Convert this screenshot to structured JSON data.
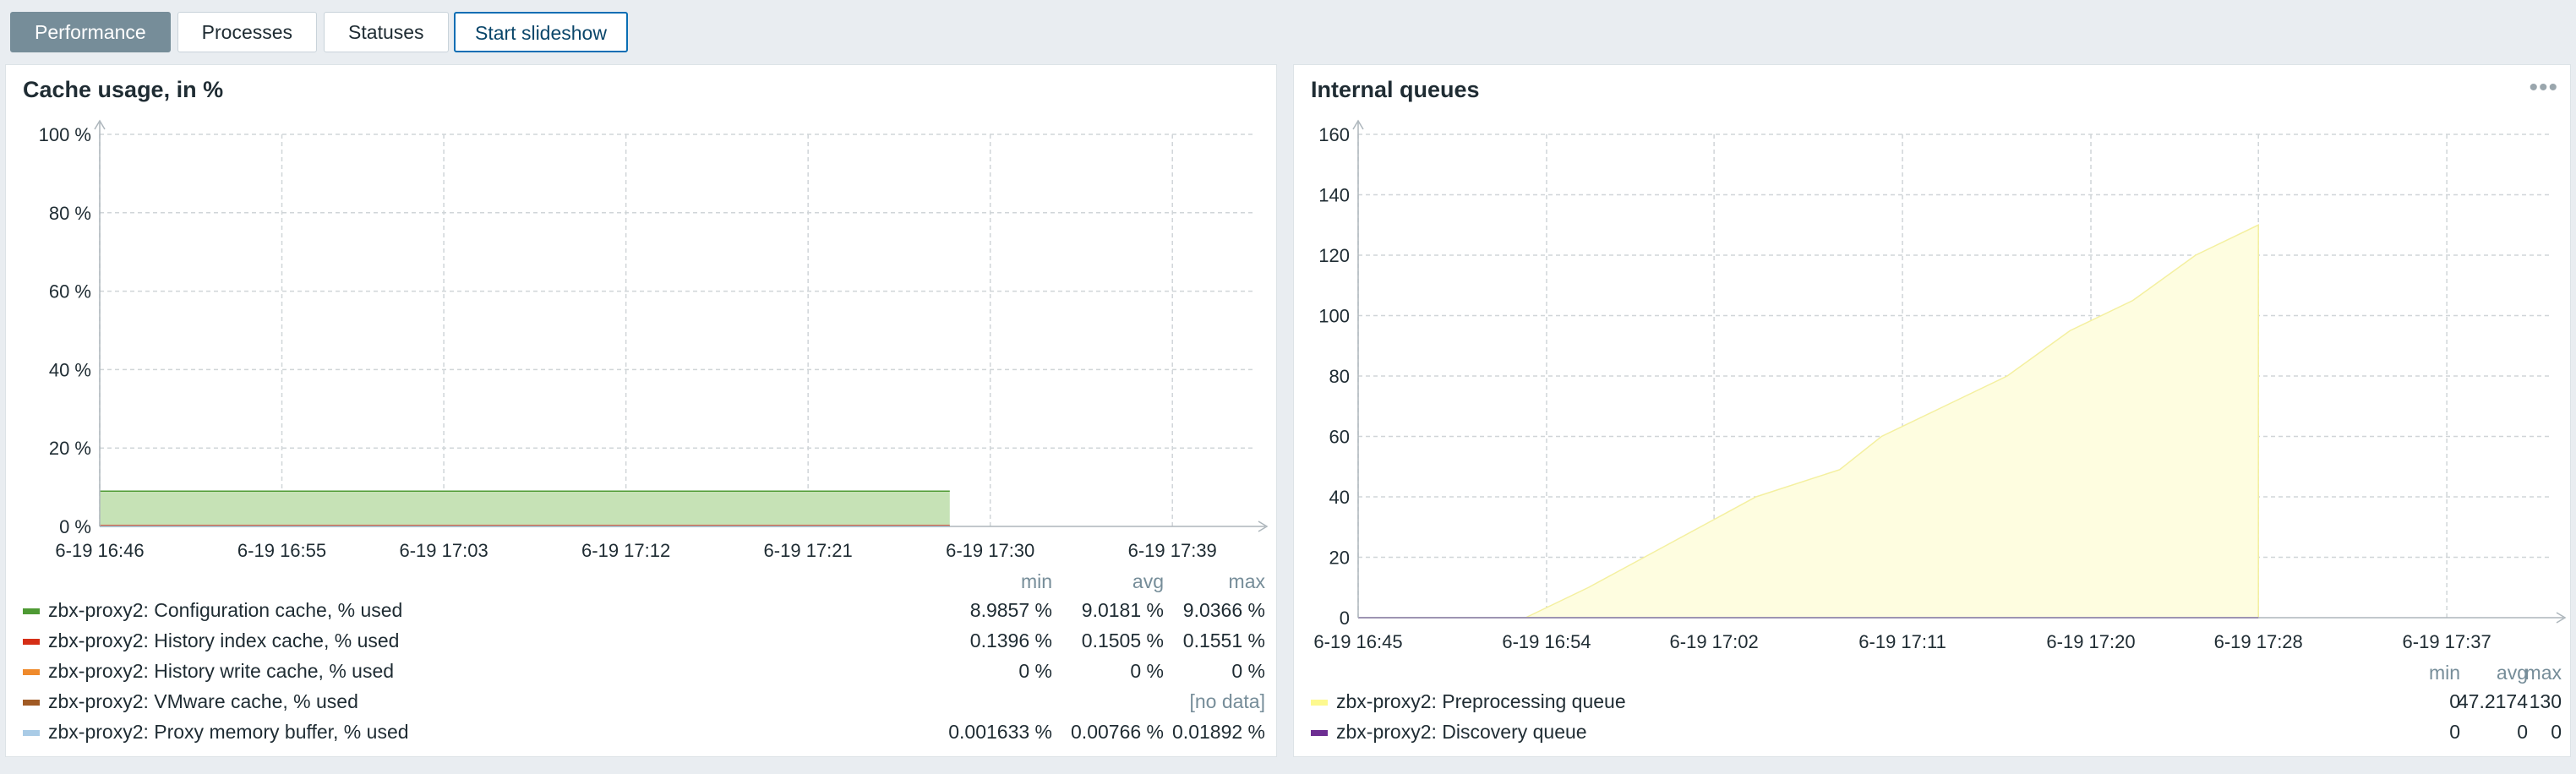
{
  "tabs": [
    {
      "label": "Performance",
      "active": true
    },
    {
      "label": "Processes",
      "active": false
    },
    {
      "label": "Statuses",
      "active": false
    }
  ],
  "slideshow_label": "Start slideshow",
  "panels": {
    "cache": {
      "title": "Cache usage, in %",
      "legend_headers": {
        "min": "min",
        "avg": "avg",
        "max": "max"
      },
      "legend": [
        {
          "name": "zbx-proxy2: Configuration cache, % used",
          "color": "#4e9a34",
          "min": "8.9857 %",
          "avg": "9.0181 %",
          "max": "9.0366 %"
        },
        {
          "name": "zbx-proxy2: History index cache, % used",
          "color": "#d52e16",
          "min": "0.1396 %",
          "avg": "0.1505 %",
          "max": "0.1551 %"
        },
        {
          "name": "zbx-proxy2: History write cache, % used",
          "color": "#ef8a2c",
          "min": "0 %",
          "avg": "0 %",
          "max": "0 %"
        },
        {
          "name": "zbx-proxy2: VMware cache, % used",
          "color": "#a05a24",
          "nodata": "[no data]"
        },
        {
          "name": "zbx-proxy2: Proxy memory buffer, % used",
          "color": "#a9cbe6",
          "min": "0.001633 %",
          "avg": "0.00766 %",
          "max": "0.01892 %"
        }
      ]
    },
    "queues": {
      "title": "Internal queues",
      "legend_headers": {
        "min": "min",
        "avg": "avg",
        "max": "max"
      },
      "legend": [
        {
          "name": "zbx-proxy2: Preprocessing queue",
          "color": "#fdf98f",
          "min": "0",
          "avg": "47.2174",
          "max": "130"
        },
        {
          "name": "zbx-proxy2: Discovery queue",
          "color": "#6d2e92",
          "min": "0",
          "avg": "0",
          "max": "0"
        }
      ]
    }
  },
  "chart_data": [
    {
      "type": "area",
      "title": "Cache usage, in %",
      "ylim": [
        0,
        100
      ],
      "y_ticks": [
        "0 %",
        "20 %",
        "40 %",
        "60 %",
        "80 %",
        "100 %"
      ],
      "y_tick_values": [
        0,
        20,
        40,
        60,
        80,
        100
      ],
      "x_ticks": [
        "6-19 16:46",
        "6-19 16:55",
        "6-19 17:03",
        "6-19 17:12",
        "6-19 17:21",
        "6-19 17:30",
        "6-19 17:39"
      ],
      "x_range": [
        "6-19 16:46",
        "6-19 17:43"
      ],
      "grid": true,
      "series": [
        {
          "name": "zbx-proxy2: Configuration cache, % used",
          "color": "#4e9a34",
          "x": [
            "6-19 16:46",
            "6-19 17:28"
          ],
          "y": [
            9.0,
            9.0
          ]
        },
        {
          "name": "zbx-proxy2: History index cache, % used",
          "color": "#d52e16",
          "x": [
            "6-19 16:46",
            "6-19 17:28"
          ],
          "y": [
            0.15,
            0.15
          ]
        },
        {
          "name": "zbx-proxy2: History write cache, % used",
          "color": "#ef8a2c",
          "x": [
            "6-19 16:46",
            "6-19 17:28"
          ],
          "y": [
            0,
            0
          ]
        },
        {
          "name": "zbx-proxy2: Proxy memory buffer, % used",
          "color": "#a9cbe6",
          "x": [
            "6-19 16:46",
            "6-19 17:28"
          ],
          "y": [
            0.01,
            0.01
          ]
        }
      ]
    },
    {
      "type": "area",
      "title": "Internal queues",
      "ylim": [
        0,
        160
      ],
      "y_ticks": [
        "0",
        "20",
        "40",
        "60",
        "80",
        "100",
        "120",
        "140",
        "160"
      ],
      "y_tick_values": [
        0,
        20,
        40,
        60,
        80,
        100,
        120,
        140,
        160
      ],
      "x_ticks": [
        "6-19 16:45",
        "6-19 16:54",
        "6-19 17:02",
        "6-19 17:11",
        "6-19 17:20",
        "6-19 17:28",
        "6-19 17:37"
      ],
      "x_range": [
        "6-19 16:45",
        "6-19 17:42"
      ],
      "grid": true,
      "series": [
        {
          "name": "zbx-proxy2: Preprocessing queue",
          "color": "#fdf98f",
          "x": [
            "6-19 16:53",
            "6-19 16:56",
            "6-19 17:00",
            "6-19 17:04",
            "6-19 17:08",
            "6-19 17:10",
            "6-19 17:13",
            "6-19 17:16",
            "6-19 17:19",
            "6-19 17:22",
            "6-19 17:25",
            "6-19 17:28",
            "6-19 17:28"
          ],
          "y": [
            0,
            10,
            25,
            40,
            49,
            60,
            70,
            80,
            95,
            105,
            120,
            130,
            0
          ]
        },
        {
          "name": "zbx-proxy2: Discovery queue",
          "color": "#6d2e92",
          "x": [
            "6-19 16:45",
            "6-19 17:28"
          ],
          "y": [
            0,
            0
          ]
        }
      ]
    }
  ]
}
